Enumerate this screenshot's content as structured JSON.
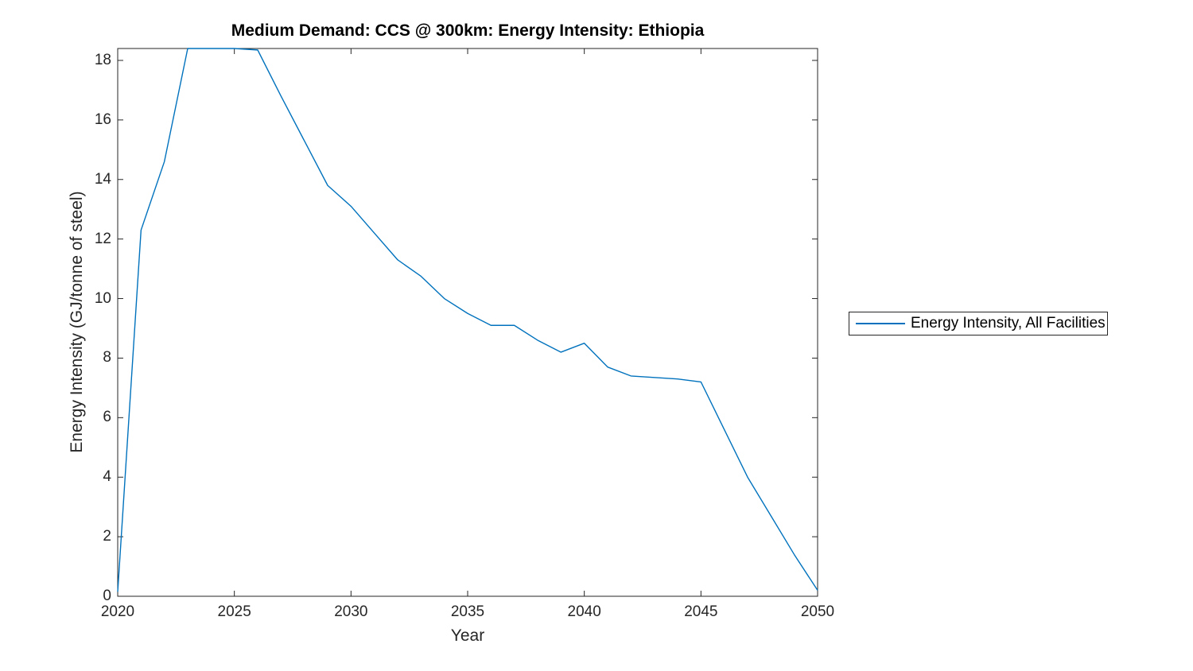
{
  "figure": {
    "title": "Medium Demand: CCS @ 300km: Energy Intensity: Ethiopia"
  },
  "legend": {
    "label": "Energy Intensity, All Facilities"
  },
  "chart_data": {
    "type": "line",
    "title": "Medium Demand: CCS @ 300km: Energy Intensity: Ethiopia",
    "xlabel": "Year",
    "ylabel": "Energy Intensity (GJ/tonne of steel)",
    "xlim": [
      2020,
      2050
    ],
    "ylim": [
      0,
      18.4
    ],
    "x_ticks": [
      2020,
      2025,
      2030,
      2035,
      2040,
      2045,
      2050
    ],
    "y_ticks": [
      0,
      2,
      4,
      6,
      8,
      10,
      12,
      14,
      16,
      18
    ],
    "grid": false,
    "legend_position": "right-outside",
    "x": [
      2020,
      2021,
      2022,
      2023,
      2024,
      2025,
      2026,
      2027,
      2028,
      2029,
      2030,
      2031,
      2032,
      2033,
      2034,
      2035,
      2036,
      2037,
      2038,
      2039,
      2040,
      2041,
      2042,
      2043,
      2044,
      2045,
      2046,
      2047,
      2048,
      2049,
      2050
    ],
    "series": [
      {
        "name": "Energy Intensity, All Facilities",
        "color": "#0072BD",
        "values": [
          0.15,
          12.3,
          14.6,
          18.4,
          18.4,
          18.4,
          18.35,
          16.8,
          15.3,
          13.8,
          13.1,
          12.2,
          11.3,
          10.75,
          10.0,
          9.5,
          9.1,
          9.1,
          8.6,
          8.2,
          8.5,
          7.7,
          7.4,
          7.35,
          7.3,
          7.2,
          5.6,
          4.0,
          2.7,
          1.4,
          0.2
        ]
      }
    ]
  },
  "colors": {
    "axis": "#262626",
    "tick_label": "#262626",
    "title": "#000000",
    "line": "#0072BD",
    "background": "#ffffff",
    "legend_border": "#262626"
  }
}
